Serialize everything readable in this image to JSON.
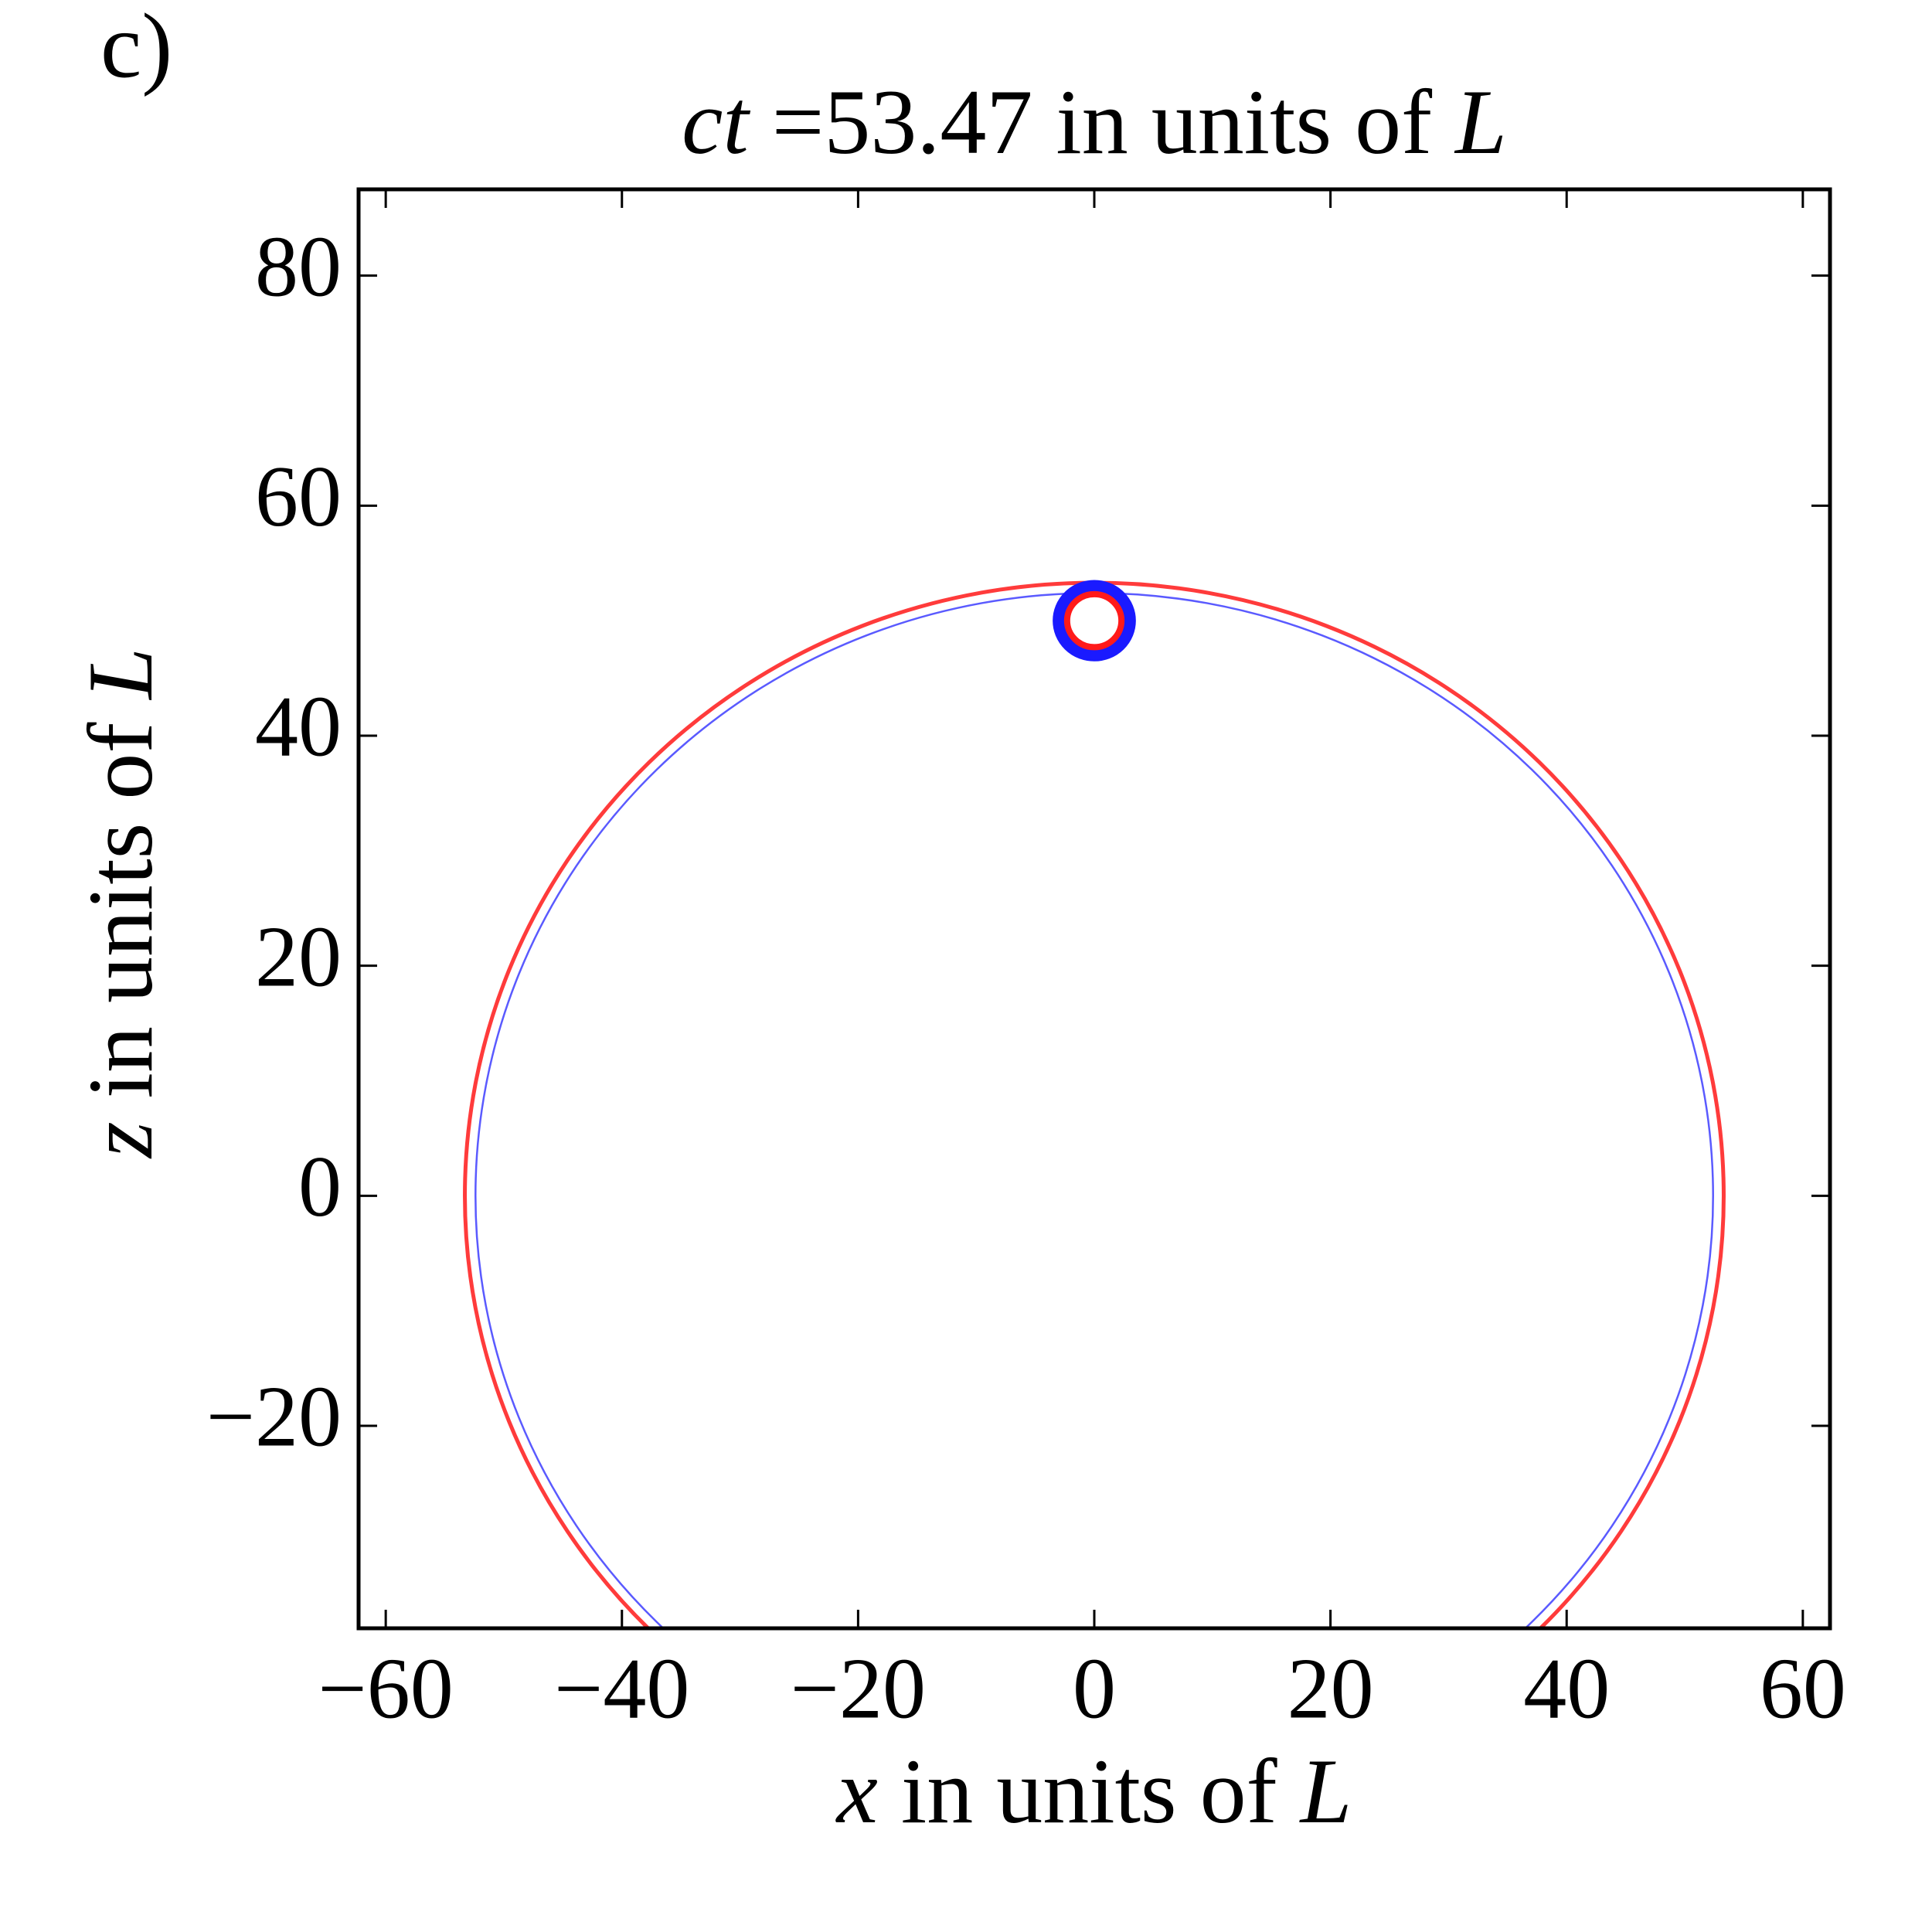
{
  "chart_data": {
    "type": "circles",
    "panel_label": "c)",
    "title": [
      "ct",
      "=53.47 in units of",
      "L"
    ],
    "xlabel": [
      "x",
      "in units of",
      "L"
    ],
    "ylabel": [
      "z",
      "in units of",
      "L"
    ],
    "xlim": [
      -62.3,
      62.3
    ],
    "ylim": [
      -37.6,
      87.5
    ],
    "xticks": [
      {
        "value": -60,
        "label": "−60"
      },
      {
        "value": -40,
        "label": "−40"
      },
      {
        "value": -20,
        "label": "−20"
      },
      0,
      20,
      40,
      60
    ],
    "yticks": [
      {
        "value": -20,
        "label": "−20"
      },
      0,
      20,
      40,
      60,
      80
    ],
    "circles": [
      {
        "color": "#ff3b3b",
        "x": 0,
        "y": 0,
        "r": 53.3
      },
      {
        "color": "#5a5aff",
        "x": 0,
        "y": 0,
        "r": 52.4
      },
      {
        "color": "#1a1aff",
        "x": 0,
        "y": 50,
        "r": 3.0
      },
      {
        "color": "#ff1a1a",
        "x": 0,
        "y": 50,
        "r": 2.3
      }
    ]
  }
}
